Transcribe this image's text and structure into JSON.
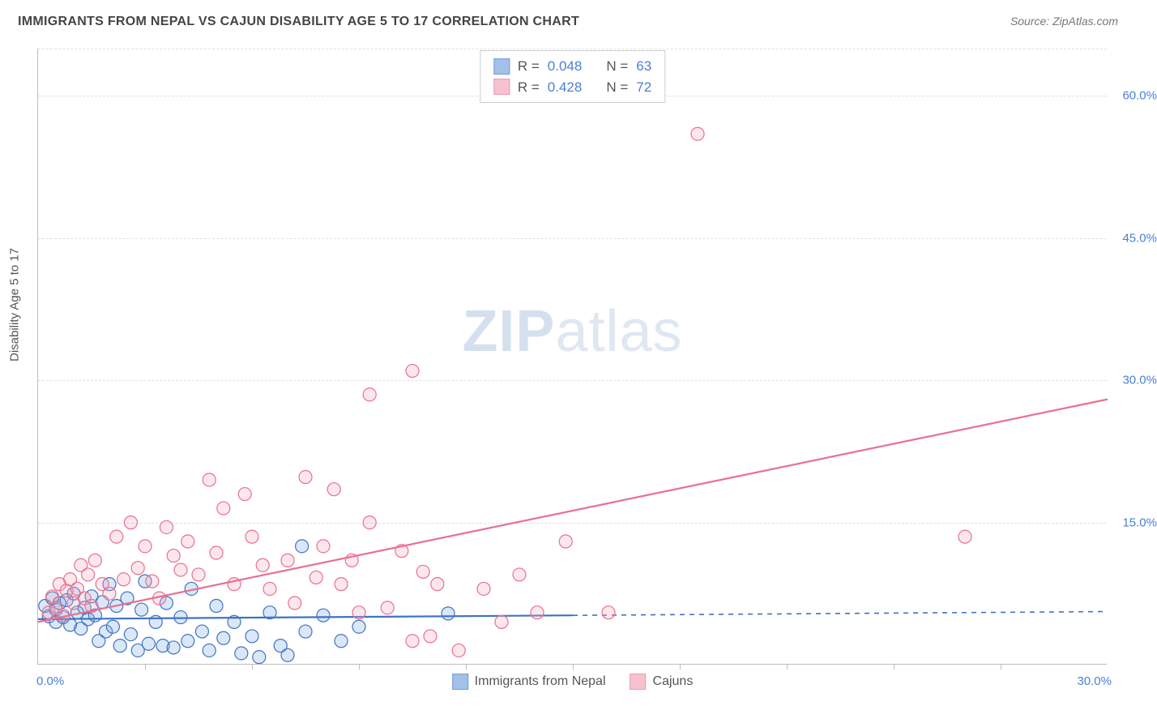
{
  "title": "IMMIGRANTS FROM NEPAL VS CAJUN DISABILITY AGE 5 TO 17 CORRELATION CHART",
  "source": "Source: ZipAtlas.com",
  "ylabel": "Disability Age 5 to 17",
  "watermark_bold": "ZIP",
  "watermark_light": "atlas",
  "chart": {
    "type": "scatter",
    "background_color": "#ffffff",
    "grid_color": "#e0e0e0",
    "axis_color": "#bdbdbd",
    "tick_label_color": "#4a7fd6",
    "xlim": [
      0,
      30
    ],
    "ylim": [
      0,
      65
    ],
    "y_gridlines": [
      15,
      30,
      45,
      60,
      65
    ],
    "ytick_labels": [
      {
        "v": 15,
        "t": "15.0%"
      },
      {
        "v": 30,
        "t": "30.0%"
      },
      {
        "v": 45,
        "t": "45.0%"
      },
      {
        "v": 60,
        "t": "60.0%"
      }
    ],
    "xtick_minor": [
      3,
      6,
      9,
      12,
      15,
      18,
      21,
      24,
      27
    ],
    "xtick_label_left": "0.0%",
    "xtick_label_right": "30.0%",
    "point_radius": 8,
    "series": [
      {
        "name": "Immigrants from Nepal",
        "color_fill": "#7aa8e0",
        "color_stroke": "#3f73c4",
        "R": "0.048",
        "N": "63",
        "trend": {
          "y0": 4.8,
          "y1": 5.6,
          "x_solid_end": 15,
          "dashed": true
        },
        "points": [
          [
            0.2,
            6.2
          ],
          [
            0.3,
            5.1
          ],
          [
            0.4,
            7.0
          ],
          [
            0.5,
            5.8
          ],
          [
            0.5,
            4.5
          ],
          [
            0.6,
            6.5
          ],
          [
            0.7,
            5.0
          ],
          [
            0.8,
            6.8
          ],
          [
            0.9,
            4.2
          ],
          [
            1.0,
            7.5
          ],
          [
            1.1,
            5.5
          ],
          [
            1.2,
            3.8
          ],
          [
            1.3,
            6.0
          ],
          [
            1.4,
            4.8
          ],
          [
            1.5,
            7.2
          ],
          [
            1.6,
            5.2
          ],
          [
            1.7,
            2.5
          ],
          [
            1.8,
            6.6
          ],
          [
            1.9,
            3.5
          ],
          [
            2.0,
            8.5
          ],
          [
            2.1,
            4.0
          ],
          [
            2.2,
            6.2
          ],
          [
            2.3,
            2.0
          ],
          [
            2.5,
            7.0
          ],
          [
            2.6,
            3.2
          ],
          [
            2.8,
            1.5
          ],
          [
            2.9,
            5.8
          ],
          [
            3.0,
            8.8
          ],
          [
            3.1,
            2.2
          ],
          [
            3.3,
            4.5
          ],
          [
            3.5,
            2.0
          ],
          [
            3.6,
            6.5
          ],
          [
            3.8,
            1.8
          ],
          [
            4.0,
            5.0
          ],
          [
            4.2,
            2.5
          ],
          [
            4.3,
            8.0
          ],
          [
            4.6,
            3.5
          ],
          [
            4.8,
            1.5
          ],
          [
            5.0,
            6.2
          ],
          [
            5.2,
            2.8
          ],
          [
            5.5,
            4.5
          ],
          [
            5.7,
            1.2
          ],
          [
            6.0,
            3.0
          ],
          [
            6.2,
            0.8
          ],
          [
            6.5,
            5.5
          ],
          [
            6.8,
            2.0
          ],
          [
            7.0,
            1.0
          ],
          [
            7.4,
            12.5
          ],
          [
            7.5,
            3.5
          ],
          [
            8.0,
            5.2
          ],
          [
            8.5,
            2.5
          ],
          [
            9.0,
            4.0
          ],
          [
            11.5,
            5.4
          ]
        ]
      },
      {
        "name": "Cajuns",
        "color_fill": "#f5a8bb",
        "color_stroke": "#e9708f",
        "R": "0.428",
        "N": "72",
        "trend": {
          "y0": 4.5,
          "y1": 28.0,
          "x_solid_end": 30,
          "dashed": false
        },
        "points": [
          [
            0.3,
            5.5
          ],
          [
            0.4,
            7.2
          ],
          [
            0.5,
            6.0
          ],
          [
            0.6,
            8.5
          ],
          [
            0.7,
            5.2
          ],
          [
            0.8,
            7.8
          ],
          [
            0.9,
            9.0
          ],
          [
            1.0,
            6.5
          ],
          [
            1.1,
            8.0
          ],
          [
            1.2,
            10.5
          ],
          [
            1.3,
            7.0
          ],
          [
            1.4,
            9.5
          ],
          [
            1.5,
            6.2
          ],
          [
            1.6,
            11.0
          ],
          [
            1.8,
            8.5
          ],
          [
            2.0,
            7.5
          ],
          [
            2.2,
            13.5
          ],
          [
            2.4,
            9.0
          ],
          [
            2.6,
            15.0
          ],
          [
            2.8,
            10.2
          ],
          [
            3.0,
            12.5
          ],
          [
            3.2,
            8.8
          ],
          [
            3.4,
            7.0
          ],
          [
            3.6,
            14.5
          ],
          [
            3.8,
            11.5
          ],
          [
            4.0,
            10.0
          ],
          [
            4.2,
            13.0
          ],
          [
            4.5,
            9.5
          ],
          [
            4.8,
            19.5
          ],
          [
            5.0,
            11.8
          ],
          [
            5.2,
            16.5
          ],
          [
            5.5,
            8.5
          ],
          [
            5.8,
            18.0
          ],
          [
            6.0,
            13.5
          ],
          [
            6.3,
            10.5
          ],
          [
            6.5,
            8.0
          ],
          [
            7.0,
            11.0
          ],
          [
            7.2,
            6.5
          ],
          [
            7.5,
            19.8
          ],
          [
            7.8,
            9.2
          ],
          [
            8.0,
            12.5
          ],
          [
            8.3,
            18.5
          ],
          [
            8.5,
            8.5
          ],
          [
            8.8,
            11.0
          ],
          [
            9.0,
            5.5
          ],
          [
            9.3,
            15.0
          ],
          [
            9.3,
            28.5
          ],
          [
            9.8,
            6.0
          ],
          [
            10.2,
            12.0
          ],
          [
            10.5,
            31.0
          ],
          [
            10.5,
            2.5
          ],
          [
            10.8,
            9.8
          ],
          [
            11.0,
            3.0
          ],
          [
            11.2,
            8.5
          ],
          [
            11.8,
            1.5
          ],
          [
            12.5,
            8.0
          ],
          [
            13.0,
            4.5
          ],
          [
            13.5,
            9.5
          ],
          [
            14.0,
            5.5
          ],
          [
            14.8,
            13.0
          ],
          [
            16.0,
            5.5
          ],
          [
            18.5,
            56.0
          ],
          [
            26.0,
            13.5
          ]
        ]
      }
    ]
  },
  "legend_bottom": [
    {
      "label": "Immigrants from Nepal",
      "fill": "#7aa8e0",
      "stroke": "#3f73c4"
    },
    {
      "label": "Cajuns",
      "fill": "#f5a8bb",
      "stroke": "#e9708f"
    }
  ]
}
